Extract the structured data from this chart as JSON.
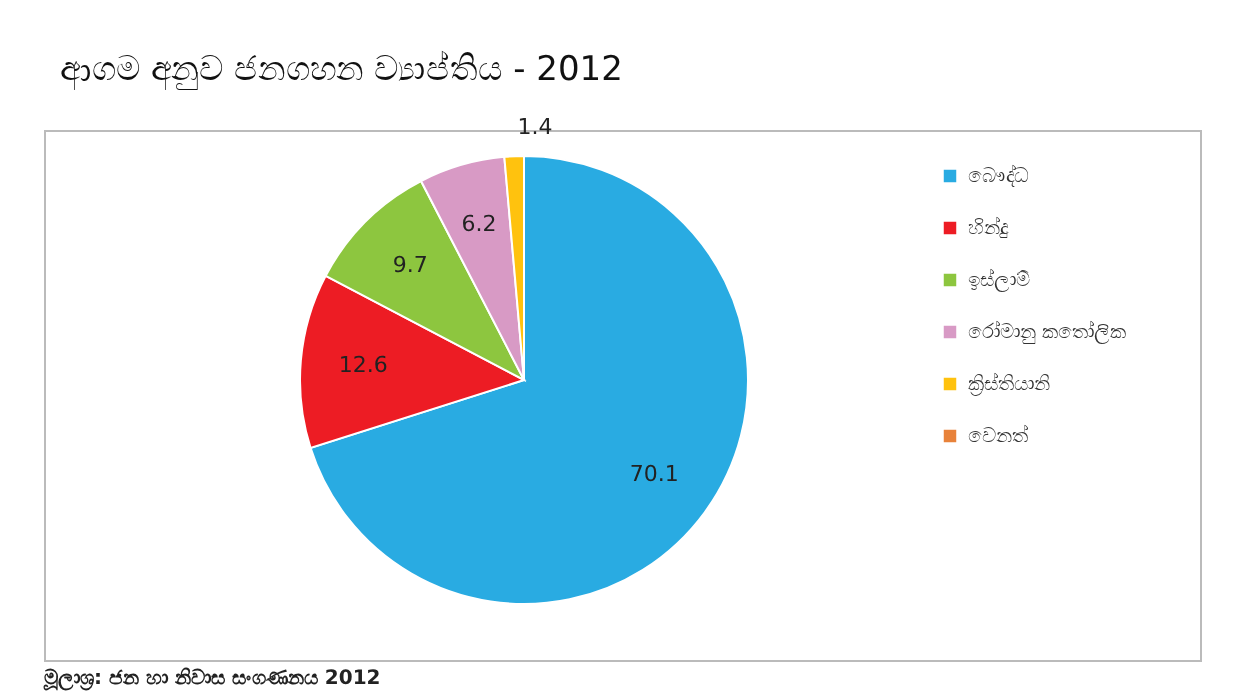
{
  "chart_data": {
    "type": "pie",
    "title": "ආගම අනුව ජනගහන ව්‍යාප්තිය - 2012",
    "categories": [
      "බෞද්ධ",
      "හින්දු",
      "ඉස්ලාම්",
      "රෝමානු කතෝලික",
      "ක්‍රිස්තියානි",
      "වෙනත්"
    ],
    "values": [
      70.1,
      12.6,
      9.7,
      6.2,
      1.4,
      0.0
    ],
    "colors": [
      "#29abe2",
      "#ed1c24",
      "#8dc63f",
      "#d89ac5",
      "#ffc20e",
      "#e8823a"
    ],
    "value_labels": [
      "70.1",
      "12.6",
      "9.7",
      "6.2",
      "1.4",
      null
    ],
    "legend": "right",
    "annotations": [
      "මූලාශ්‍ර: ජන හා නිවාස සංගණනය 2012"
    ]
  }
}
